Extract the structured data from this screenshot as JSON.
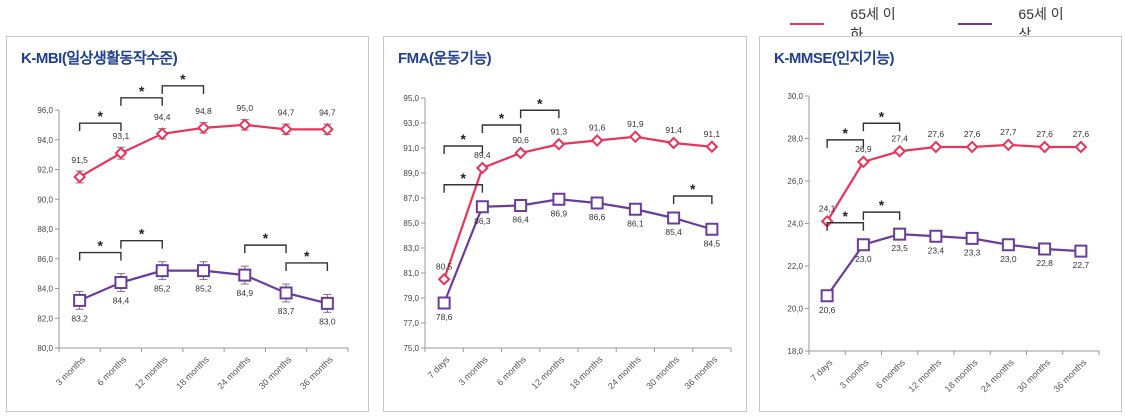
{
  "legend": [
    {
      "label": "65세 이하",
      "color": "#e8355a"
    },
    {
      "label": "65세 이상",
      "color": "#6a3d9a"
    }
  ],
  "chart_data": [
    {
      "type": "line",
      "title": "K-MBI(일상생활동작수준)",
      "categories": [
        "3 months",
        "6 months",
        "12 months",
        "18 months",
        "24 months",
        "30 months",
        "36 months"
      ],
      "ylim": [
        80,
        96
      ],
      "yticks": [
        "80,0",
        "82,0",
        "84,0",
        "86,0",
        "88,0",
        "90,0",
        "92,0",
        "94,0",
        "96,0"
      ],
      "error_bars": true,
      "series": [
        {
          "name": "65세 이하",
          "values": [
            91.5,
            93.1,
            94.4,
            94.8,
            95.0,
            94.7,
            94.7
          ],
          "labels": [
            "91,5",
            "93,1",
            "94,4",
            "94,8",
            "95,0",
            "94,7",
            "94,7"
          ],
          "error": [
            0.4,
            0.4,
            0.35,
            0.35,
            0.35,
            0.35,
            0.35
          ],
          "marker": "diamond",
          "significance": [
            [
              0,
              1
            ],
            [
              1,
              2
            ],
            [
              2,
              3
            ]
          ]
        },
        {
          "name": "65세 이상",
          "values": [
            83.2,
            84.4,
            85.2,
            85.2,
            84.9,
            83.7,
            83.0
          ],
          "labels": [
            "83,2",
            "84,4",
            "85,2",
            "85,2",
            "84,9",
            "83,7",
            "83,0"
          ],
          "error": [
            0.6,
            0.6,
            0.6,
            0.6,
            0.6,
            0.6,
            0.6
          ],
          "marker": "square",
          "significance": [
            [
              0,
              1
            ],
            [
              1,
              2
            ],
            [
              4,
              5
            ],
            [
              5,
              6
            ]
          ]
        }
      ]
    },
    {
      "type": "line",
      "title": "FMA(운동기능)",
      "categories": [
        "7 days",
        "3 months",
        "6 months",
        "12 months",
        "18 months",
        "24 months",
        "30 months",
        "36 months"
      ],
      "ylim": [
        75,
        95
      ],
      "yticks": [
        "75,0",
        "77,0",
        "79,0",
        "81,0",
        "83,0",
        "85,0",
        "87,0",
        "89,0",
        "91,0",
        "93,0",
        "95,0"
      ],
      "error_bars": false,
      "series": [
        {
          "name": "65세 이하",
          "values": [
            80.5,
            89.4,
            90.6,
            91.3,
            91.6,
            91.9,
            91.4,
            91.1
          ],
          "labels": [
            "80,5",
            "89,4",
            "90,6",
            "91,3",
            "91,6",
            "91,9",
            "91,4",
            "91,1"
          ],
          "marker": "diamond",
          "significance": [
            [
              0,
              1
            ],
            [
              1,
              2
            ],
            [
              2,
              3
            ]
          ]
        },
        {
          "name": "65세 이상",
          "values": [
            78.6,
            86.3,
            86.4,
            86.9,
            86.6,
            86.1,
            85.4,
            84.5
          ],
          "labels": [
            "78,6",
            "86,3",
            "86,4",
            "86,9",
            "86,6",
            "86,1",
            "85,4",
            "84,5"
          ],
          "marker": "square",
          "significance": [
            [
              0,
              1
            ],
            [
              6,
              7
            ]
          ]
        }
      ]
    },
    {
      "type": "line",
      "title": "K-MMSE(인지기능)",
      "categories": [
        "7 days",
        "3 months",
        "6 months",
        "12 months",
        "18 months",
        "24 months",
        "30 months",
        "36 months"
      ],
      "ylim": [
        18,
        30
      ],
      "yticks": [
        "18,0",
        "20,0",
        "22,0",
        "24,0",
        "26,0",
        "28,0",
        "30,0"
      ],
      "error_bars": false,
      "series": [
        {
          "name": "65세 이하",
          "values": [
            24.1,
            26.9,
            27.4,
            27.6,
            27.6,
            27.7,
            27.6,
            27.6
          ],
          "labels": [
            "24,1",
            "26,9",
            "27,4",
            "27,6",
            "27,6",
            "27,7",
            "27,6",
            "27,6"
          ],
          "marker": "diamond",
          "significance": [
            [
              0,
              1
            ],
            [
              1,
              2
            ]
          ]
        },
        {
          "name": "65세 이상",
          "values": [
            20.6,
            23.0,
            23.5,
            23.4,
            23.3,
            23.0,
            22.8,
            22.7
          ],
          "labels": [
            "20,6",
            "23,0",
            "23,5",
            "23,4",
            "23,3",
            "23,0",
            "22,8",
            "22,7"
          ],
          "marker": "square",
          "significance": [
            [
              0,
              1
            ],
            [
              1,
              2
            ]
          ]
        }
      ]
    }
  ],
  "significance_mark": "*"
}
